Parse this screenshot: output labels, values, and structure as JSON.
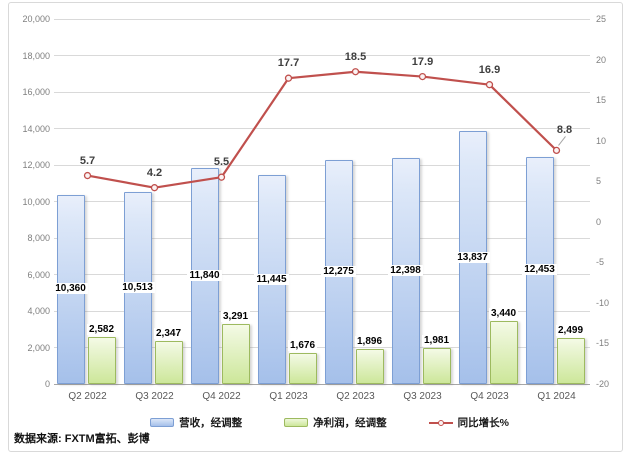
{
  "source_note": "数据来源: FXTM富拓、彭博",
  "chart_data": {
    "type": "combo-bar-line",
    "categories": [
      "Q2 2022",
      "Q3 2022",
      "Q4 2022",
      "Q1 2023",
      "Q2 2023",
      "Q3 2023",
      "Q4 2023",
      "Q1 2024"
    ],
    "series": [
      {
        "name": "营收，经调整",
        "type": "bar",
        "axis": "left",
        "values": [
          10360,
          10513,
          11840,
          11445,
          12275,
          12398,
          13837,
          12453
        ]
      },
      {
        "name": "净利润，经调整",
        "type": "bar",
        "axis": "left",
        "values": [
          2582,
          2347,
          3291,
          1676,
          1896,
          1981,
          3440,
          2499
        ]
      },
      {
        "name": "同比增长%",
        "type": "line",
        "axis": "right",
        "values": [
          5.7,
          4.2,
          5.5,
          17.7,
          18.5,
          17.9,
          16.9,
          8.8
        ]
      }
    ],
    "left_axis": {
      "min": 0,
      "max": 20000,
      "step": 2000
    },
    "right_axis": {
      "min": -20,
      "max": 25,
      "step": 5
    },
    "grid": true,
    "legend_position": "bottom"
  },
  "colors": {
    "bar_revenue_top": "#dce7f8",
    "bar_revenue_bottom": "#a5c0ea",
    "bar_revenue_border": "#7d9fd4",
    "bar_profit_top": "#eef7db",
    "bar_profit_bottom": "#cde79a",
    "bar_profit_border": "#9dba5f",
    "line": "#c0504d",
    "gridline": "#d9d9d9",
    "axis_text": "#7f7f7f",
    "frame_border": "#d9d9d9"
  }
}
